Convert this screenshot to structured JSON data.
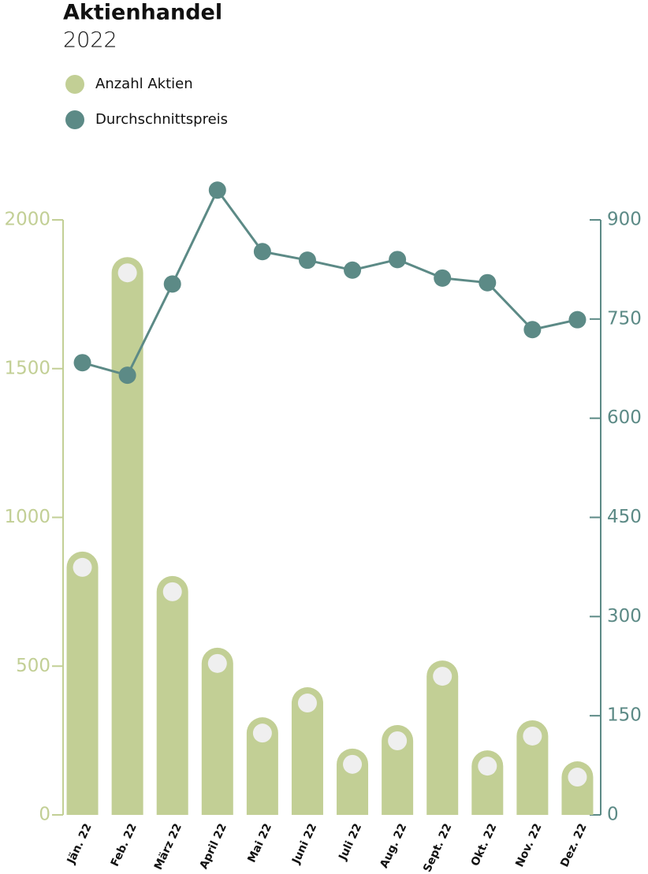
{
  "chart_data": {
    "type": "bar",
    "title": "Aktienhandel",
    "subtitle": "2022",
    "categories": [
      "Jän. 22",
      "Feb. 22",
      "März 22",
      "April 22",
      "Mai 22",
      "Juni 22",
      "Juli 22",
      "Aug. 22",
      "Sept. 22",
      "Okt. 22",
      "Nov. 22",
      "Dez. 22"
    ],
    "series": [
      {
        "name": "Anzahl Aktien",
        "type": "bar",
        "color": "#c2cf95",
        "values": [
          885,
          1875,
          803,
          562,
          328,
          429,
          223,
          302,
          519,
          217,
          318,
          180
        ]
      },
      {
        "name": "Durchschnittspreis",
        "type": "line",
        "axis": "y2",
        "color": "#5c8a86",
        "values": [
          684,
          665,
          803,
          945,
          852,
          839,
          824,
          840,
          812,
          805,
          734,
          749
        ]
      }
    ],
    "ylim": [
      0,
      2000
    ],
    "yticks": [
      0,
      500,
      1000,
      1500,
      2000
    ],
    "y2lim": [
      0,
      900
    ],
    "y2ticks": [
      0,
      150,
      300,
      450,
      600,
      750,
      900
    ],
    "grid": false
  }
}
